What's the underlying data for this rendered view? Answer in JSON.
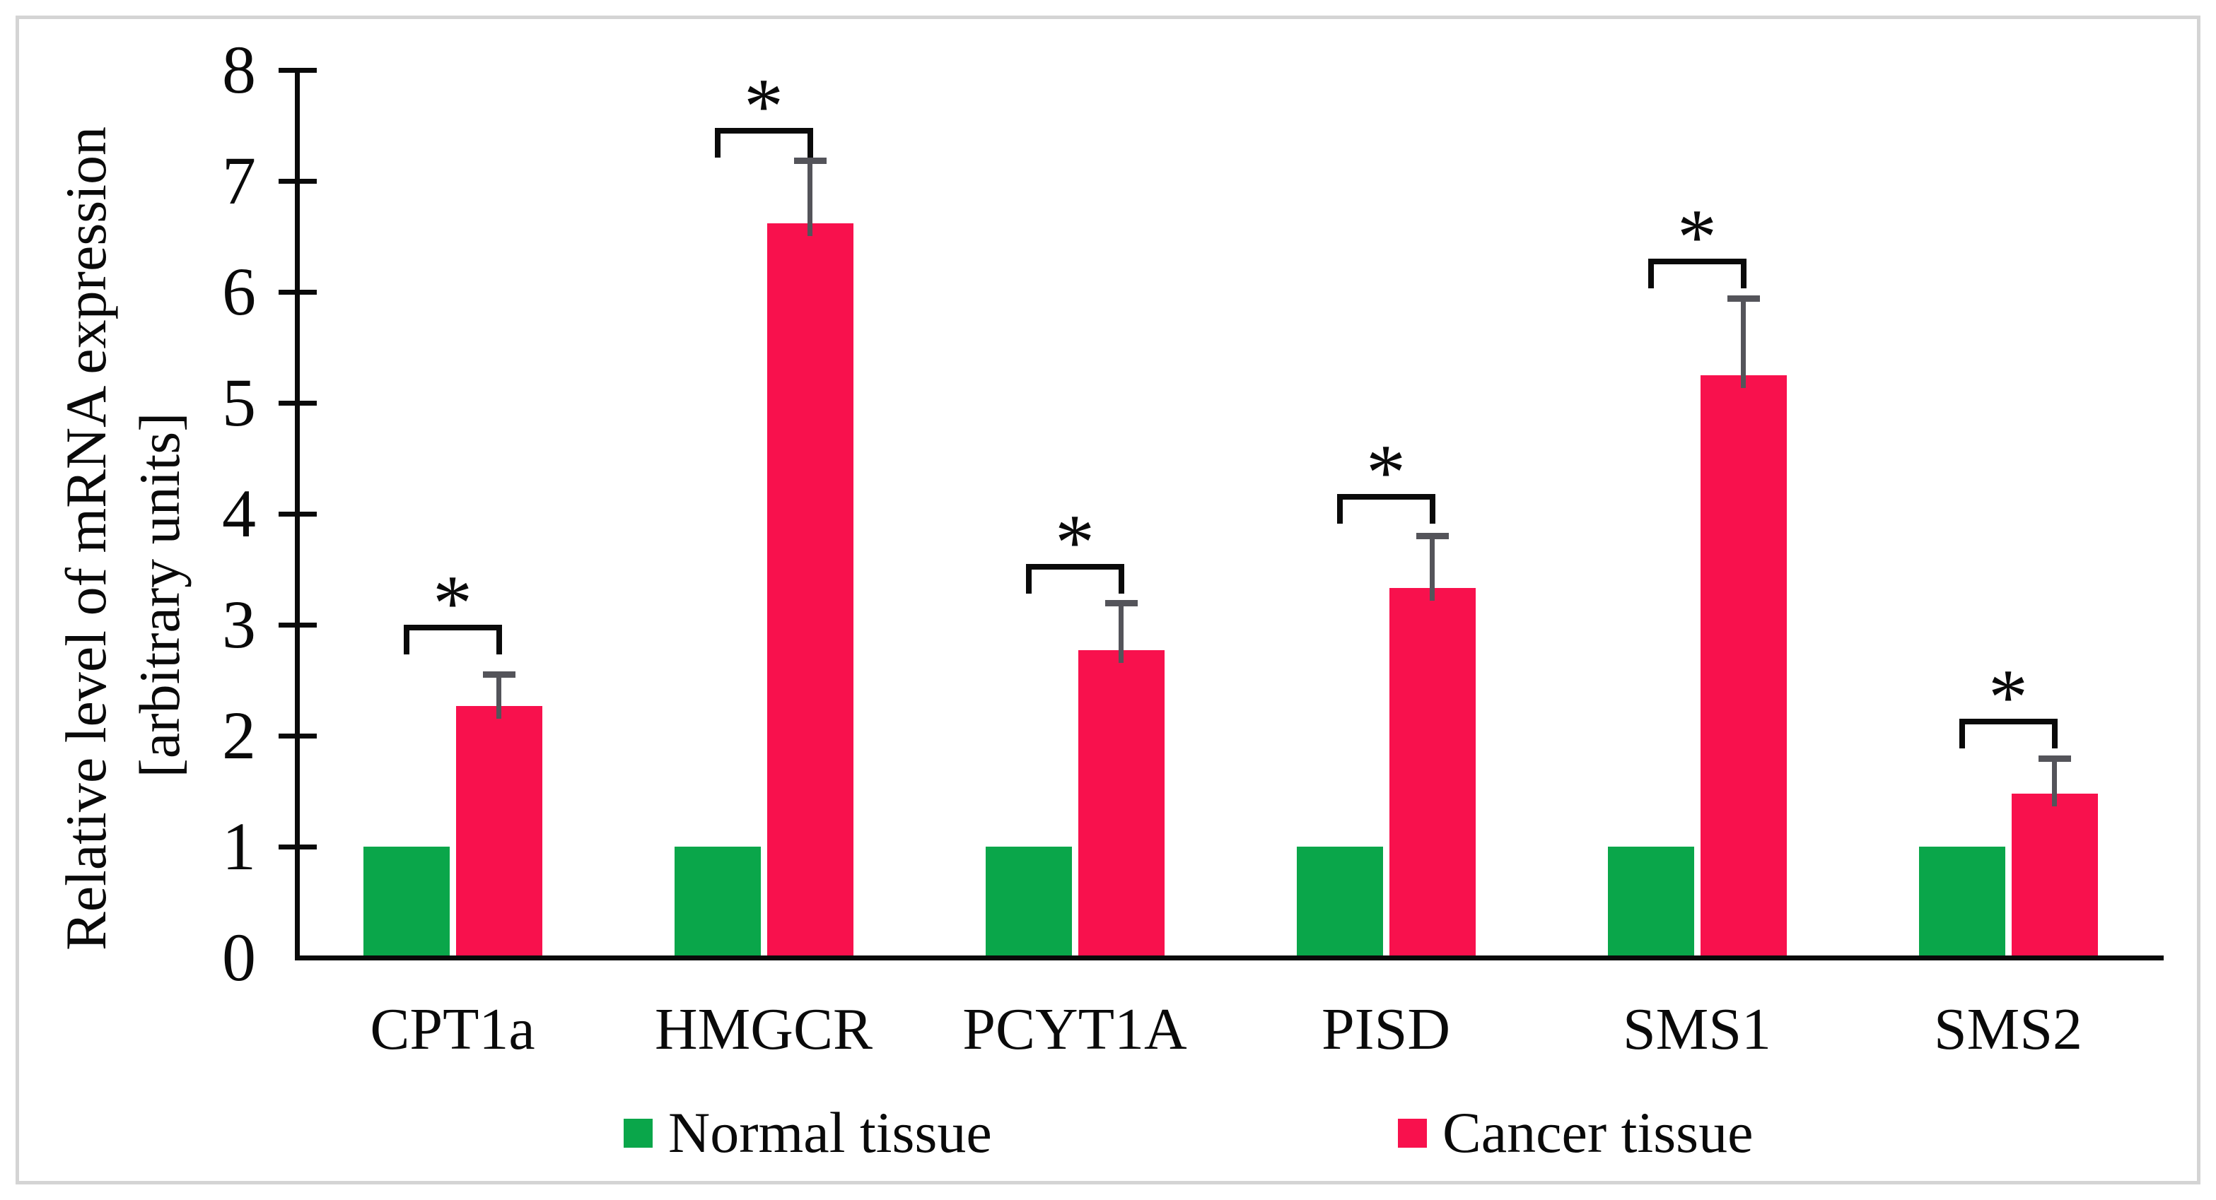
{
  "figure": {
    "y_axis_title_line1": "Relative level of mRNA expression",
    "y_axis_title_line2": "[arbitrary units]"
  },
  "legend": {
    "items": [
      {
        "label": "Normal tissue",
        "color": "#0aa64a"
      },
      {
        "label": "Cancer tissue",
        "color": "#f8114d"
      }
    ]
  },
  "colors": {
    "normal_green": "#0aa64a",
    "cancer_red": "#f8114d",
    "error_bar_gray": "#54545a",
    "axis_black": "#0a0a0a",
    "frame_gray": "#d4d4d4"
  },
  "chart_data": {
    "type": "bar",
    "title": "",
    "categories": [
      "CPT1a",
      "HMGCR",
      "PCYT1A",
      "PISD",
      "SMS1",
      "SMS2"
    ],
    "series": [
      {
        "name": "Normal tissue",
        "color": "#0aa64a",
        "values": [
          1.0,
          1.0,
          1.0,
          1.0,
          1.0,
          1.0
        ]
      },
      {
        "name": "Cancer tissue",
        "color": "#f8114d",
        "values": [
          2.27,
          6.62,
          2.77,
          3.33,
          5.25,
          1.48
        ],
        "error_plus": [
          0.31,
          0.59,
          0.45,
          0.5,
          0.72,
          0.34
        ]
      }
    ],
    "significance": [
      {
        "category": "CPT1a",
        "symbol": "*",
        "bracket_y": 3.0
      },
      {
        "category": "HMGCR",
        "symbol": "*",
        "bracket_y": 7.48
      },
      {
        "category": "PCYT1A",
        "symbol": "*",
        "bracket_y": 3.55
      },
      {
        "category": "PISD",
        "symbol": "*",
        "bracket_y": 4.18
      },
      {
        "category": "SMS1",
        "symbol": "*",
        "bracket_y": 6.3
      },
      {
        "category": "SMS2",
        "symbol": "*",
        "bracket_y": 2.15
      }
    ],
    "xlabel": "",
    "ylabel": "Relative level of mRNA expression [arbitrary units]",
    "yticks": [
      0,
      1,
      2,
      3,
      4,
      5,
      6,
      7,
      8
    ],
    "ylim": [
      0,
      8
    ],
    "grid": false,
    "error_bars": "upper only",
    "legend_position": "bottom"
  }
}
